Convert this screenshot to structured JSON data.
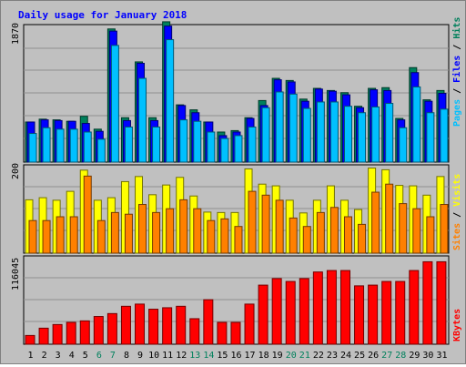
{
  "title": "Daily usage for January 2018",
  "colors": {
    "background": "#c0c0c0",
    "title": "#0000ff",
    "hits": "#00805c",
    "files": "#0000ff",
    "pages": "#00c0ff",
    "visits": "#ffff00",
    "sites": "#ff8000",
    "kbytes": "#ff0000",
    "weekend_label": "#00805c",
    "weekday_label": "#000000"
  },
  "chart_data": [
    {
      "type": "bar",
      "title": "Daily usage for January 2018",
      "y_max_label": "1870",
      "ylim": [
        0,
        1870
      ],
      "series_labels": [
        "Pages",
        "Files",
        "Hits"
      ],
      "categories": [
        "1",
        "2",
        "3",
        "4",
        "5",
        "6",
        "7",
        "8",
        "9",
        "10",
        "11",
        "12",
        "13",
        "14",
        "15",
        "16",
        "17",
        "18",
        "19",
        "20",
        "21",
        "22",
        "23",
        "24",
        "25",
        "26",
        "27",
        "28",
        "29",
        "30",
        "31"
      ],
      "weekend_days": [
        "6",
        "7",
        "13",
        "14",
        "20",
        "21",
        "27",
        "28"
      ],
      "series": [
        {
          "name": "Hits",
          "values": [
            560,
            600,
            590,
            570,
            640,
            460,
            1860,
            620,
            1400,
            620,
            1960,
            800,
            730,
            560,
            420,
            440,
            620,
            860,
            1170,
            1140,
            880,
            1030,
            1000,
            970,
            780,
            1030,
            1040,
            610,
            1320,
            870,
            1000
          ]
        },
        {
          "name": "Files",
          "values": [
            560,
            590,
            580,
            570,
            540,
            430,
            1830,
            580,
            1380,
            580,
            1900,
            790,
            690,
            560,
            370,
            420,
            610,
            790,
            1150,
            1120,
            850,
            1020,
            990,
            940,
            760,
            1010,
            1000,
            590,
            1250,
            850,
            960
          ]
        },
        {
          "name": "Pages",
          "values": [
            400,
            480,
            460,
            460,
            420,
            320,
            1630,
            490,
            1170,
            490,
            1710,
            590,
            570,
            420,
            330,
            370,
            490,
            760,
            980,
            950,
            750,
            840,
            840,
            780,
            690,
            770,
            820,
            480,
            1050,
            690,
            740
          ]
        }
      ]
    },
    {
      "type": "bar",
      "y_max_label": "200",
      "ylim": [
        0,
        200
      ],
      "series_labels": [
        "Sites",
        "Visits"
      ],
      "categories": [
        "1",
        "2",
        "3",
        "4",
        "5",
        "6",
        "7",
        "8",
        "9",
        "10",
        "11",
        "12",
        "13",
        "14",
        "15",
        "16",
        "17",
        "18",
        "19",
        "20",
        "21",
        "22",
        "23",
        "24",
        "25",
        "26",
        "27",
        "28",
        "29",
        "30",
        "31"
      ],
      "series": [
        {
          "name": "Visits",
          "values": [
            126,
            131,
            125,
            146,
            196,
            125,
            131,
            169,
            181,
            138,
            161,
            179,
            135,
            97,
            96,
            96,
            199,
            163,
            159,
            125,
            95,
            125,
            159,
            125,
            103,
            201,
            197,
            160,
            159,
            137,
            181
          ]
        },
        {
          "name": "Sites",
          "values": [
            77,
            77,
            86,
            86,
            182,
            77,
            96,
            92,
            115,
            96,
            105,
            126,
            105,
            77,
            81,
            63,
            146,
            137,
            125,
            83,
            63,
            96,
            108,
            86,
            68,
            144,
            163,
            117,
            105,
            86,
            115
          ]
        }
      ]
    },
    {
      "type": "bar",
      "y_max_label": "116045",
      "ylim": [
        0,
        116045
      ],
      "series_labels": [
        "KBytes"
      ],
      "categories": [
        "1",
        "2",
        "3",
        "4",
        "5",
        "6",
        "7",
        "8",
        "9",
        "10",
        "11",
        "12",
        "13",
        "14",
        "15",
        "16",
        "17",
        "18",
        "19",
        "20",
        "21",
        "22",
        "23",
        "24",
        "25",
        "26",
        "27",
        "28",
        "29",
        "30",
        "31"
      ],
      "series": [
        {
          "name": "KBytes",
          "values": [
            12000,
            22000,
            27000,
            30000,
            32000,
            38000,
            42000,
            52000,
            55000,
            48000,
            50000,
            52000,
            35000,
            61000,
            30000,
            30000,
            55000,
            81000,
            90000,
            86000,
            90000,
            99000,
            101000,
            101000,
            80000,
            81000,
            86000,
            86000,
            101000,
            113000,
            113000
          ]
        }
      ]
    }
  ]
}
